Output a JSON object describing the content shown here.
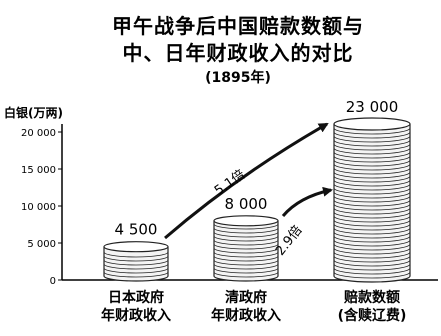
{
  "chart_data": {
    "type": "bar",
    "title": [
      "甲午战争后中国赔款数额与",
      "中、日年财政收入的对比"
    ],
    "subtitle": "(1895年)",
    "ylabel": "白银(万两)",
    "ylim": [
      0,
      20000
    ],
    "yticks": [
      "0",
      "5 000",
      "10 000",
      "15 000",
      "20 000"
    ],
    "categories": [
      [
        "日本政府",
        "年财政收入"
      ],
      [
        "清政府",
        "年财政收入"
      ],
      [
        "赔款数额",
        "(含赎辽费)"
      ]
    ],
    "values": [
      4500,
      8000,
      23000
    ],
    "value_labels": [
      "4 500",
      "8 000",
      "23 000"
    ],
    "annotations": [
      {
        "text": "5.1倍",
        "from": 0,
        "to": 2
      },
      {
        "text": "2.9倍",
        "from": 1,
        "to": 2
      }
    ],
    "colors": {
      "coin": "#f4f4f4",
      "stroke": "#222222",
      "axis": "#000000"
    }
  }
}
